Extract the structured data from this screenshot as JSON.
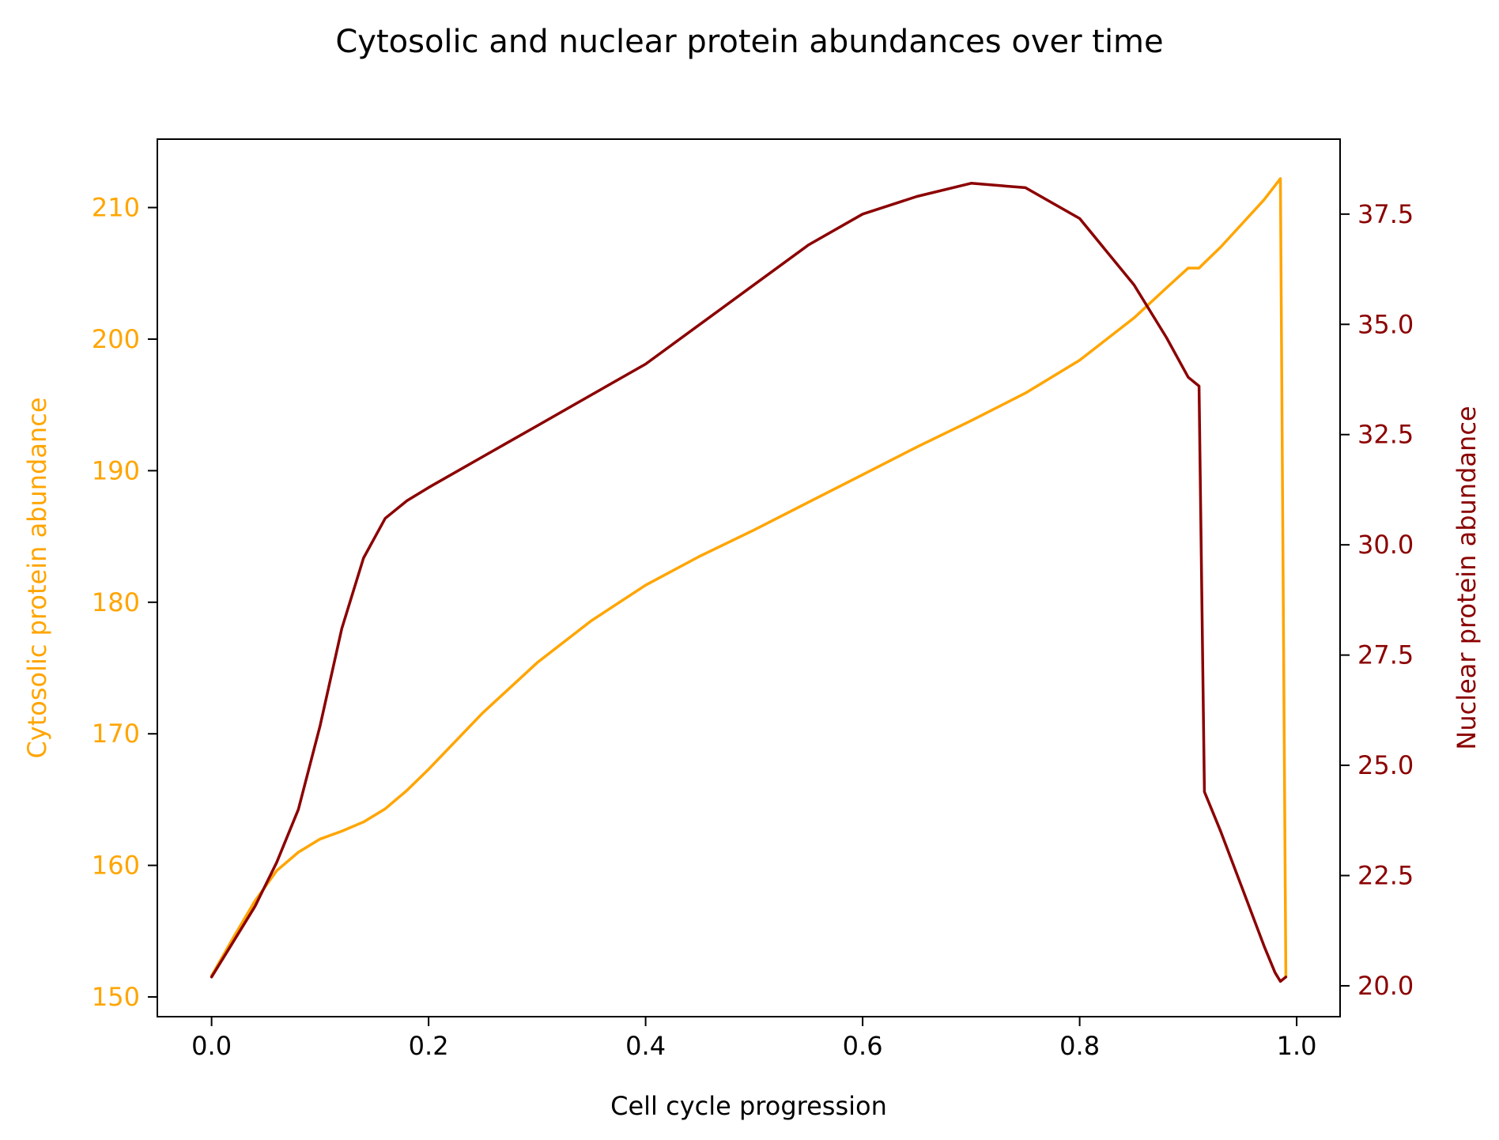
{
  "chart_data": {
    "type": "line",
    "title": "Cytosolic and nuclear protein abundances over time",
    "xlabel": "Cell cycle progression",
    "ylabel_left": "Cytosolic protein abundance",
    "ylabel_right": "Nuclear protein abundance",
    "xlim": [
      -0.05,
      1.04
    ],
    "ylim_left": [
      148.5,
      215.2
    ],
    "ylim_right": [
      19.3,
      39.2
    ],
    "x_ticks": [
      0.0,
      0.2,
      0.4,
      0.6,
      0.8,
      1.0
    ],
    "x_tick_labels": [
      "0.0",
      "0.2",
      "0.4",
      "0.6",
      "0.8",
      "1.0"
    ],
    "y_left_ticks": [
      150,
      160,
      170,
      180,
      190,
      200,
      210
    ],
    "y_left_tick_labels": [
      "150",
      "160",
      "170",
      "180",
      "190",
      "200",
      "210"
    ],
    "y_right_ticks": [
      20.0,
      22.5,
      25.0,
      27.5,
      30.0,
      32.5,
      35.0,
      37.5
    ],
    "y_right_tick_labels": [
      "20.0",
      "22.5",
      "25.0",
      "27.5",
      "30.0",
      "32.5",
      "35.0",
      "37.5"
    ],
    "grid": false,
    "legend": "none",
    "colors": {
      "left_axis": "#FFA500",
      "right_axis": "#8B0000"
    },
    "series": [
      {
        "axis": "left",
        "color": "#FFA500",
        "x": [
          0.0,
          0.02,
          0.04,
          0.06,
          0.08,
          0.1,
          0.12,
          0.14,
          0.16,
          0.18,
          0.2,
          0.25,
          0.3,
          0.35,
          0.4,
          0.45,
          0.5,
          0.55,
          0.6,
          0.65,
          0.7,
          0.75,
          0.8,
          0.85,
          0.88,
          0.9,
          0.91,
          0.915,
          0.93,
          0.95,
          0.97,
          0.985,
          0.99
        ],
        "y": [
          151.6,
          154.5,
          157.3,
          159.6,
          161.0,
          162.0,
          162.6,
          163.3,
          164.3,
          165.7,
          167.3,
          171.6,
          175.4,
          178.6,
          181.3,
          183.5,
          185.5,
          187.6,
          189.7,
          191.8,
          193.8,
          195.9,
          198.4,
          201.6,
          203.9,
          205.4,
          205.4,
          205.8,
          207.0,
          208.8,
          210.6,
          212.2,
          151.6
        ]
      },
      {
        "axis": "right",
        "color": "#8B0000",
        "x": [
          0.0,
          0.02,
          0.04,
          0.06,
          0.08,
          0.1,
          0.12,
          0.14,
          0.16,
          0.18,
          0.2,
          0.25,
          0.3,
          0.35,
          0.4,
          0.45,
          0.5,
          0.55,
          0.6,
          0.65,
          0.7,
          0.75,
          0.8,
          0.85,
          0.88,
          0.9,
          0.91,
          0.915,
          0.93,
          0.95,
          0.97,
          0.98,
          0.985,
          0.99
        ],
        "y": [
          20.2,
          21.0,
          21.8,
          22.8,
          24.0,
          25.9,
          28.1,
          29.7,
          30.6,
          31.0,
          31.3,
          32.0,
          32.7,
          33.4,
          34.1,
          35.0,
          35.9,
          36.8,
          37.5,
          37.9,
          38.2,
          38.1,
          37.4,
          35.9,
          34.7,
          33.8,
          33.6,
          24.4,
          23.5,
          22.2,
          20.9,
          20.3,
          20.1,
          20.2
        ]
      }
    ]
  }
}
